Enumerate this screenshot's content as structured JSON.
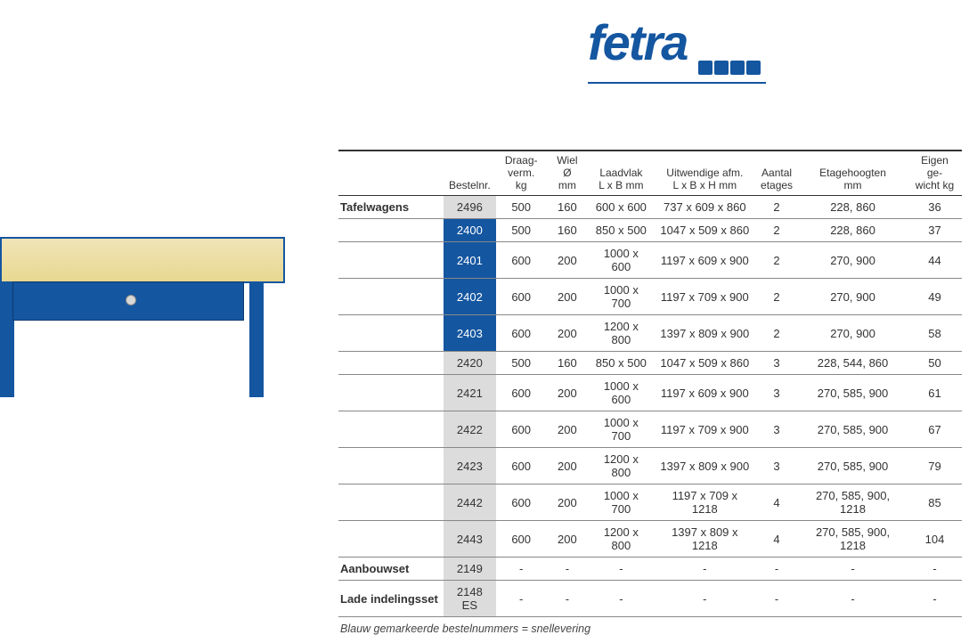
{
  "logo": {
    "text": "fetra"
  },
  "columns": [
    {
      "l1": "",
      "l2": ""
    },
    {
      "l1": "",
      "l2": "Bestelnr."
    },
    {
      "l1": "Draag-",
      "l2": "verm. kg"
    },
    {
      "l1": "Wiel Ø",
      "l2": "mm"
    },
    {
      "l1": "Laadvlak",
      "l2": "L x B mm"
    },
    {
      "l1": "Uitwendige afm.",
      "l2": "L x B x H mm"
    },
    {
      "l1": "Aantal",
      "l2": "etages"
    },
    {
      "l1": "Etagehoogten",
      "l2": "mm"
    },
    {
      "l1": "Eigen ge-",
      "l2": "wicht kg"
    }
  ],
  "rows": [
    {
      "cat": "Tafelwagens",
      "bestel": "2496",
      "blue": false,
      "c": [
        "500",
        "160",
        "600 x 600",
        "737 x 609 x 860",
        "2",
        "228, 860",
        "36"
      ]
    },
    {
      "cat": "",
      "bestel": "2400",
      "blue": true,
      "c": [
        "500",
        "160",
        "850 x 500",
        "1047 x 509 x 860",
        "2",
        "228, 860",
        "37"
      ]
    },
    {
      "cat": "",
      "bestel": "2401",
      "blue": true,
      "c": [
        "600",
        "200",
        "1000 x 600",
        "1197 x 609 x 900",
        "2",
        "270, 900",
        "44"
      ]
    },
    {
      "cat": "",
      "bestel": "2402",
      "blue": true,
      "c": [
        "600",
        "200",
        "1000 x 700",
        "1197 x 709 x 900",
        "2",
        "270, 900",
        "49"
      ]
    },
    {
      "cat": "",
      "bestel": "2403",
      "blue": true,
      "c": [
        "600",
        "200",
        "1200 x 800",
        "1397 x 809 x 900",
        "2",
        "270, 900",
        "58"
      ]
    },
    {
      "cat": "",
      "bestel": "2420",
      "blue": false,
      "c": [
        "500",
        "160",
        "850 x 500",
        "1047 x 509 x 860",
        "3",
        "228, 544, 860",
        "50"
      ]
    },
    {
      "cat": "",
      "bestel": "2421",
      "blue": false,
      "c": [
        "600",
        "200",
        "1000 x 600",
        "1197 x 609 x 900",
        "3",
        "270, 585, 900",
        "61"
      ]
    },
    {
      "cat": "",
      "bestel": "2422",
      "blue": false,
      "c": [
        "600",
        "200",
        "1000 x 700",
        "1197 x 709 x 900",
        "3",
        "270, 585, 900",
        "67"
      ]
    },
    {
      "cat": "",
      "bestel": "2423",
      "blue": false,
      "c": [
        "600",
        "200",
        "1200 x 800",
        "1397 x 809 x 900",
        "3",
        "270, 585, 900",
        "79"
      ]
    },
    {
      "cat": "",
      "bestel": "2442",
      "blue": false,
      "c": [
        "600",
        "200",
        "1000 x 700",
        "1197 x 709 x 1218",
        "4",
        "270, 585, 900, 1218",
        "85"
      ]
    },
    {
      "cat": "",
      "bestel": "2443",
      "blue": false,
      "c": [
        "600",
        "200",
        "1200 x 800",
        "1397 x 809 x 1218",
        "4",
        "270, 585, 900, 1218",
        "104"
      ]
    },
    {
      "cat": "Aanbouwset",
      "bestel": "2149",
      "blue": false,
      "c": [
        "-",
        "-",
        "-",
        "-",
        "-",
        "-",
        "-"
      ]
    },
    {
      "cat": "Lade indelingsset",
      "bestel": "2148 ES",
      "blue": false,
      "c": [
        "-",
        "-",
        "-",
        "-",
        "-",
        "-",
        "-"
      ]
    }
  ],
  "footer": "Blauw gemarkeerde bestelnummers = snellevering",
  "colors": {
    "brand": "#1456a0",
    "grey_cell": "#dcdcdc",
    "text": "#333333"
  }
}
